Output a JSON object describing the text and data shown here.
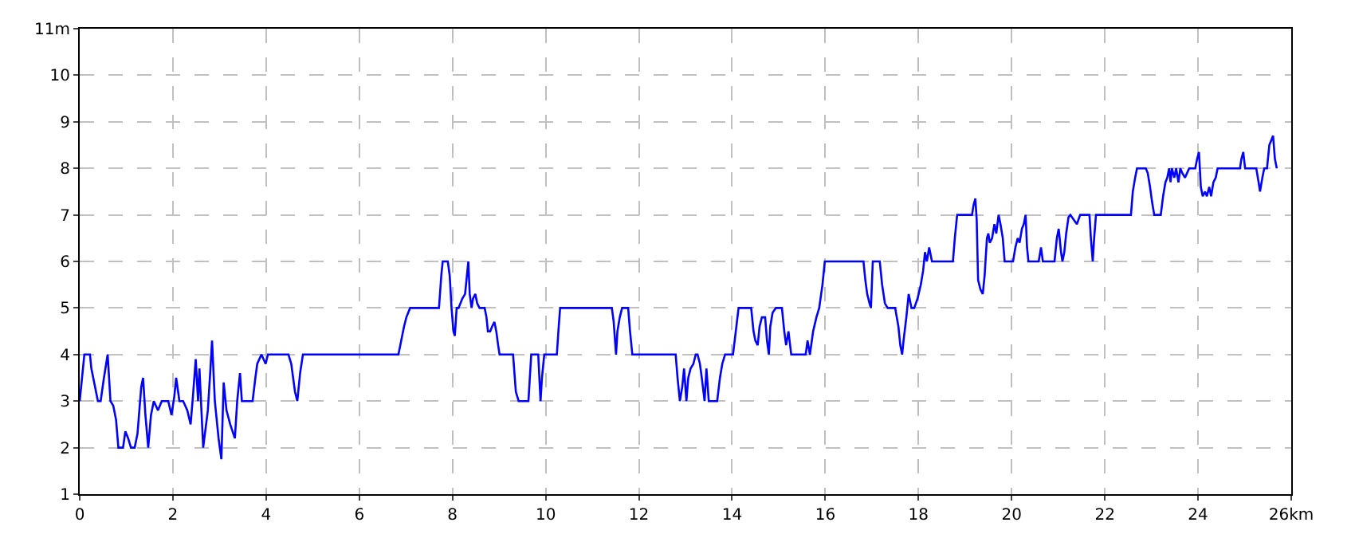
{
  "chart_data": {
    "type": "line",
    "x": [
      0,
      0.1,
      0.22,
      0.25,
      0.31,
      0.39,
      0.45,
      0.52,
      0.6,
      0.66,
      0.72,
      0.78,
      0.83,
      0.93,
      0.98,
      1.04,
      1.1,
      1.18,
      1.24,
      1.32,
      1.36,
      1.41,
      1.47,
      1.53,
      1.59,
      1.68,
      1.76,
      1.9,
      1.97,
      2.03,
      2.07,
      2.14,
      2.22,
      2.31,
      2.38,
      2.43,
      2.49,
      2.54,
      2.57,
      2.65,
      2.75,
      2.8,
      2.84,
      2.9,
      2.98,
      3.04,
      3.09,
      3.15,
      3.23,
      3.33,
      3.38,
      3.44,
      3.48,
      3.71,
      3.77,
      3.81,
      3.9,
      3.99,
      4.04,
      4.48,
      4.54,
      4.62,
      4.67,
      4.73,
      4.79,
      6.84,
      6.9,
      6.96,
      7.01,
      7.09,
      7.71,
      7.76,
      7.79,
      7.9,
      7.94,
      7.98,
      8.02,
      8.05,
      8.09,
      8.13,
      8.21,
      8.27,
      8.3,
      8.34,
      8.37,
      8.41,
      8.44,
      8.49,
      8.53,
      8.58,
      8.69,
      8.73,
      8.76,
      8.81,
      8.85,
      8.9,
      8.94,
      8.98,
      9.01,
      9.3,
      9.33,
      9.36,
      9.42,
      9.63,
      9.66,
      9.69,
      9.84,
      9.89,
      9.92,
      9.97,
      10.24,
      10.28,
      10.31,
      11.42,
      11.46,
      11.51,
      11.54,
      11.59,
      11.64,
      11.77,
      11.81,
      11.86,
      12.79,
      12.83,
      12.88,
      12.93,
      12.97,
      13.02,
      13.06,
      13.11,
      13.17,
      13.22,
      13.26,
      13.31,
      13.35,
      13.41,
      13.45,
      13.5,
      13.68,
      13.74,
      13.79,
      13.85,
      14.02,
      14.08,
      14.14,
      14.41,
      14.46,
      14.5,
      14.55,
      14.59,
      14.64,
      14.71,
      14.75,
      14.79,
      14.82,
      14.87,
      14.94,
      15.07,
      15.12,
      15.16,
      15.21,
      15.27,
      15.58,
      15.62,
      15.67,
      15.74,
      15.81,
      15.87,
      15.94,
      15.99,
      16.82,
      16.86,
      16.9,
      16.95,
      16.98,
      17.02,
      17.17,
      17.22,
      17.28,
      17.34,
      17.5,
      17.57,
      17.61,
      17.65,
      17.68,
      17.74,
      17.79,
      17.85,
      17.91,
      17.98,
      18.05,
      18.1,
      18.14,
      18.18,
      18.23,
      18.29,
      18.74,
      18.78,
      18.83,
      19.15,
      19.18,
      19.22,
      19.25,
      19.28,
      19.33,
      19.38,
      19.42,
      19.47,
      19.5,
      19.53,
      19.58,
      19.63,
      19.67,
      19.72,
      19.76,
      19.81,
      19.85,
      20.03,
      20.08,
      20.13,
      20.17,
      20.22,
      20.26,
      20.3,
      20.33,
      20.36,
      20.58,
      20.63,
      20.67,
      20.92,
      20.97,
      21.01,
      21.06,
      21.09,
      21.13,
      21.17,
      21.22,
      21.26,
      21.33,
      21.4,
      21.47,
      21.67,
      21.7,
      21.74,
      21.77,
      21.81,
      22.56,
      22.6,
      22.65,
      22.69,
      22.88,
      22.92,
      22.97,
      23.01,
      23.06,
      23.2,
      23.25,
      23.3,
      23.34,
      23.38,
      23.41,
      23.44,
      23.49,
      23.53,
      23.58,
      23.62,
      23.66,
      23.72,
      23.81,
      23.94,
      23.98,
      24.02,
      24.06,
      24.1,
      24.15,
      24.19,
      24.24,
      24.28,
      24.33,
      24.38,
      24.42,
      24.9,
      24.93,
      24.97,
      25.01,
      25.25,
      25.3,
      25.33,
      25.38,
      25.42,
      25.48,
      25.53,
      25.57,
      25.61,
      25.65,
      25.69
    ],
    "series": [
      {
        "color": "#0000ff",
        "values": [
          3,
          4,
          4,
          3.7,
          3.4,
          3,
          3,
          3.5,
          4,
          3,
          2.9,
          2.6,
          2,
          2,
          2.35,
          2.2,
          2,
          2,
          2.3,
          3.3,
          3.5,
          2.7,
          2,
          2.7,
          3,
          2.8,
          3,
          3,
          2.7,
          3.1,
          3.5,
          3,
          3,
          2.8,
          2.5,
          3.1,
          3.9,
          3,
          3.7,
          2,
          2.8,
          3.6,
          4.3,
          3,
          2.2,
          1.75,
          3.4,
          2.8,
          2.5,
          2.2,
          3,
          3.6,
          3,
          3,
          3.5,
          3.8,
          4,
          3.8,
          4,
          4,
          3.8,
          3.2,
          3,
          3.6,
          4,
          4,
          4.3,
          4.6,
          4.8,
          5,
          5,
          5.7,
          6,
          6,
          5.7,
          5,
          4.5,
          4.4,
          5,
          5,
          5.2,
          5.3,
          5.6,
          6,
          5.3,
          5,
          5.2,
          5.3,
          5.1,
          5,
          5,
          4.8,
          4.5,
          4.5,
          4.6,
          4.7,
          4.5,
          4.2,
          4,
          4,
          3.6,
          3.2,
          3,
          3,
          3.5,
          4,
          4,
          3,
          3.5,
          4,
          4,
          4.6,
          5,
          5,
          4.7,
          4,
          4.5,
          4.8,
          5,
          5,
          4.5,
          4,
          4,
          3.5,
          3,
          3.3,
          3.7,
          3,
          3.5,
          3.7,
          3.8,
          4,
          4,
          3.8,
          3.5,
          3,
          3.7,
          3,
          3,
          3.5,
          3.8,
          4,
          4,
          4.5,
          5,
          5,
          4.5,
          4.3,
          4.2,
          4.6,
          4.8,
          4.8,
          4.3,
          4,
          4.6,
          4.9,
          5,
          5,
          4.5,
          4.2,
          4.5,
          4,
          4,
          4.3,
          4,
          4.5,
          4.8,
          5,
          5.5,
          6,
          6,
          5.6,
          5.3,
          5.1,
          5,
          6,
          6,
          5.5,
          5.1,
          5,
          5,
          4.6,
          4.2,
          4,
          4.3,
          4.8,
          5.3,
          5,
          5,
          5.2,
          5.5,
          5.8,
          6.2,
          6,
          6.3,
          6,
          6,
          6.5,
          7,
          7,
          7.2,
          7.35,
          6.9,
          5.6,
          5.4,
          5.3,
          5.7,
          6.5,
          6.6,
          6.4,
          6.5,
          6.8,
          6.6,
          7,
          6.8,
          6.5,
          6,
          6,
          6.3,
          6.5,
          6.4,
          6.7,
          6.8,
          7,
          6.3,
          6,
          6,
          6.3,
          6,
          6,
          6.5,
          6.7,
          6.2,
          6,
          6.2,
          6.6,
          6.95,
          7,
          6.9,
          6.8,
          7,
          7,
          6.5,
          6,
          6.5,
          7,
          7,
          7.5,
          7.8,
          8,
          8,
          7.9,
          7.6,
          7.3,
          7,
          7,
          7.4,
          7.7,
          7.8,
          8,
          7.7,
          8,
          7.8,
          8,
          7.7,
          8,
          7.9,
          7.8,
          8,
          8,
          8.2,
          8.35,
          7.6,
          7.4,
          7.5,
          7.4,
          7.6,
          7.4,
          7.7,
          7.8,
          8,
          8,
          8.2,
          8.35,
          8,
          8,
          7.7,
          7.5,
          7.8,
          8,
          8,
          8.5,
          8.6,
          8.7,
          8.2,
          8
        ]
      }
    ],
    "xlim": [
      0,
      26
    ],
    "xticks": [
      0,
      2,
      4,
      6,
      8,
      10,
      12,
      14,
      16,
      18,
      20,
      22,
      24,
      {
        "value": 26,
        "label": "26km"
      }
    ],
    "ylim": [
      1,
      11
    ],
    "yticks": [
      1,
      2,
      3,
      4,
      5,
      6,
      7,
      8,
      9,
      10,
      {
        "value": 11,
        "label": "11m"
      }
    ],
    "grid": true,
    "legend": false,
    "marker": "none",
    "line_style": "solid"
  }
}
